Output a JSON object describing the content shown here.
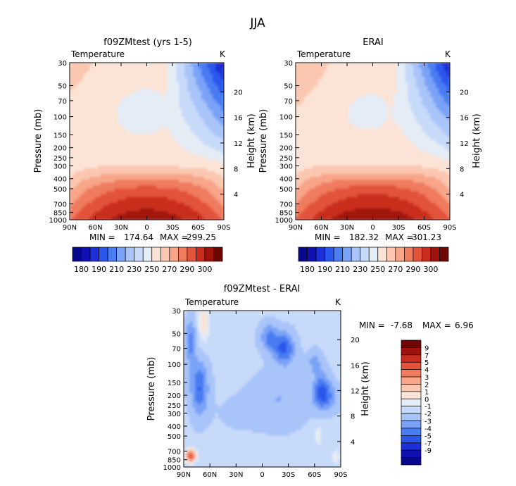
{
  "page": {
    "title": "JJA"
  },
  "colors": {
    "temp": [
      "#08088c",
      "#1010b0",
      "#1c2fd8",
      "#2b56ec",
      "#4a7cf2",
      "#7aa3f7",
      "#a9c4f9",
      "#c8daf9",
      "#e4ecf6",
      "#fbe3d6",
      "#fbc7b0",
      "#f8a58a",
      "#f07c5e",
      "#e3533a",
      "#c92e1e",
      "#a0130c",
      "#6e0606"
    ],
    "diff": [
      "#08088c",
      "#1010b0",
      "#1c2fd8",
      "#2b56ec",
      "#4a7cf2",
      "#7aa3f7",
      "#a9c4f9",
      "#c8daf9",
      "#e4ecf6",
      "#fbe3d6",
      "#fbc7b0",
      "#f8a58a",
      "#f07c5e",
      "#e3533a",
      "#c92e1e",
      "#a0130c",
      "#6e0606"
    ]
  },
  "chart_data": [
    {
      "type": "heatmap",
      "title": "f09ZMtest (yrs 1-5)",
      "left_label": "Temperature",
      "right_label": "K",
      "ylabel": "Pressure (mb)",
      "y2label": "Height (km)",
      "xticks": [
        "90N",
        "60N",
        "30N",
        "0",
        "30S",
        "60S",
        "90S"
      ],
      "yticks": [
        30,
        50,
        70,
        100,
        150,
        200,
        250,
        300,
        400,
        500,
        700,
        850,
        1000
      ],
      "y2ticks": [
        4,
        8,
        12,
        16,
        20
      ],
      "ylim": [
        1000,
        30
      ],
      "min_label": "MIN =",
      "min": "174.64",
      "max_label": "MAX =",
      "max": "299.25",
      "colorbar_labels": [
        "180",
        "190",
        "210",
        "230",
        "250",
        "270",
        "290",
        "300"
      ]
    },
    {
      "type": "heatmap",
      "title": "ERAI",
      "left_label": "Temperature",
      "right_label": "K",
      "ylabel": "Pressure (mb)",
      "y2label": "Height (km)",
      "xticks": [
        "90N",
        "60N",
        "30N",
        "0",
        "30S",
        "60S",
        "90S"
      ],
      "yticks": [
        30,
        50,
        70,
        100,
        150,
        200,
        250,
        300,
        400,
        500,
        700,
        850,
        1000
      ],
      "y2ticks": [
        4,
        8,
        12,
        16,
        20
      ],
      "ylim": [
        1000,
        30
      ],
      "min_label": "MIN =",
      "min": "182.32",
      "max_label": "MAX =",
      "max": "301.23",
      "colorbar_labels": [
        "180",
        "190",
        "210",
        "230",
        "250",
        "270",
        "290",
        "300"
      ]
    },
    {
      "type": "heatmap",
      "title": "f09ZMtest - ERAI",
      "left_label": "Temperature",
      "right_label": "K",
      "ylabel": "Pressure (mb)",
      "y2label": "Height (km)",
      "xticks": [
        "90N",
        "60N",
        "30N",
        "0",
        "30S",
        "60S",
        "90S"
      ],
      "yticks": [
        30,
        50,
        70,
        100,
        150,
        200,
        250,
        300,
        400,
        500,
        700,
        850,
        1000
      ],
      "y2ticks": [
        4,
        8,
        12,
        16,
        20
      ],
      "ylim": [
        1000,
        30
      ],
      "min_label": "MIN =",
      "min": "-7.68",
      "max_label": "MAX =",
      "max": "6.96",
      "colorbar_labels": [
        "9",
        "7",
        "5",
        "4",
        "3",
        "2",
        "1",
        "0",
        "-1",
        "-2",
        "-3",
        "-4",
        "-5",
        "-7",
        "-9"
      ]
    }
  ]
}
